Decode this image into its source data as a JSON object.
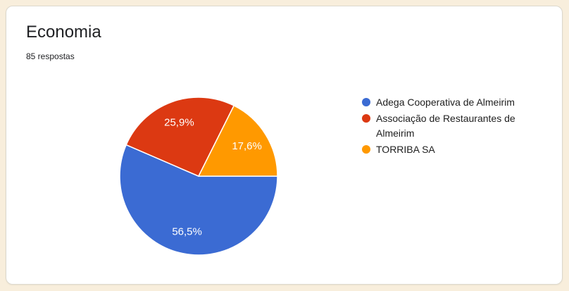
{
  "card": {
    "title": "Economia",
    "subtitle": "85 respostas"
  },
  "chart_data": {
    "type": "pie",
    "title": "Economia",
    "labels": [
      "Adega Cooperativa de Almeirim",
      "Associação de Restaurantes de Almeirim",
      "TORRIBA SA"
    ],
    "values_pct": [
      56.5,
      25.9,
      17.6
    ],
    "value_labels": [
      "56,5%",
      "25,9%",
      "17,6%"
    ],
    "colors": [
      "#3b6bd3",
      "#dc3912",
      "#ff9900"
    ],
    "slice_border_color": "#ffffff",
    "legend_position": "right",
    "start_angle_deg": 0,
    "direction": "clockwise"
  }
}
